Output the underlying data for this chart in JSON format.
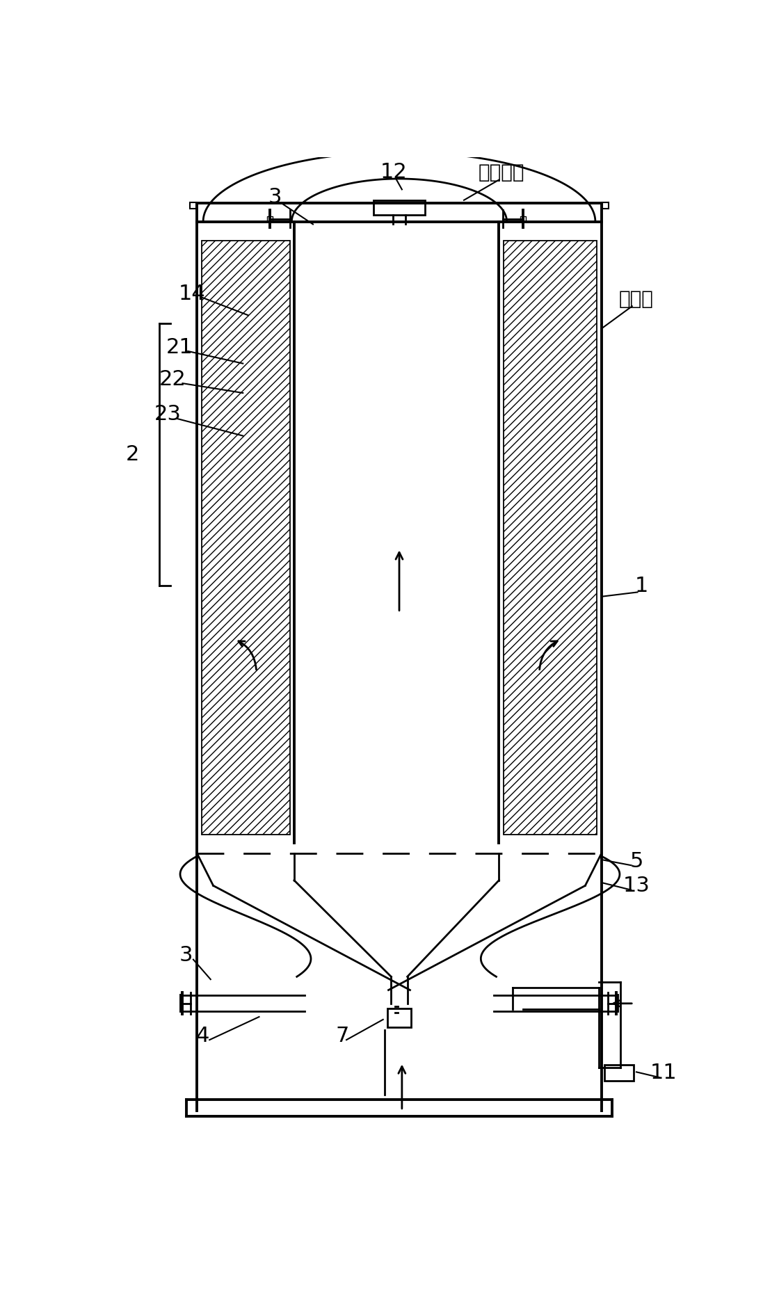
{
  "bg_color": "#ffffff",
  "line_color": "#000000",
  "fig_width": 11.2,
  "fig_height": 18.85,
  "lw": 2.0,
  "lw_thick": 2.8,
  "lw_thin": 1.3
}
